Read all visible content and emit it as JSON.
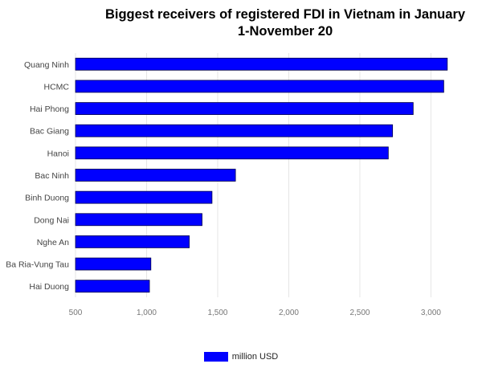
{
  "chart_data": {
    "type": "bar",
    "orientation": "horizontal",
    "title_lines": [
      "Biggest receivers of registered FDI in Vietnam in January",
      "1-November 20"
    ],
    "categories": [
      "Quang Ninh",
      "HCMC",
      "Hai Phong",
      "Bac Giang",
      "Hanoi",
      "Bac Ninh",
      "Binh Duong",
      "Dong Nai",
      "Nghe An",
      "Ba Ria-Vung Tau",
      "Hai Duong"
    ],
    "series": [
      {
        "name": "million USD",
        "color": "#0000ff",
        "values": [
          3115,
          3090,
          2875,
          2730,
          2700,
          1625,
          1460,
          1390,
          1300,
          1030,
          1020
        ]
      }
    ],
    "xlim": [
      500,
      3150
    ],
    "xticks": [
      500,
      1000,
      1500,
      2000,
      2500,
      3000
    ],
    "xtick_labels": [
      "500",
      "1,000",
      "1,500",
      "2,000",
      "2,500",
      "3,000"
    ],
    "grid": true,
    "legend_position": "bottom"
  }
}
